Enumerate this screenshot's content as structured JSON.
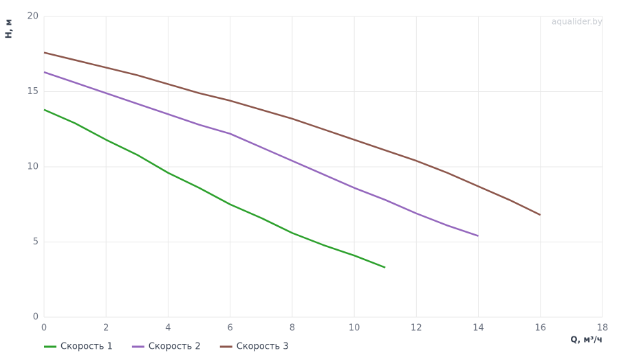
{
  "chart_data": {
    "type": "line",
    "x_label": "Q, м³/ч",
    "y_label": "H, м",
    "watermark": "aqualider.by",
    "x": [
      0,
      1,
      2,
      3,
      4,
      5,
      6,
      7,
      8,
      9,
      10,
      11,
      12,
      13,
      14,
      15,
      16
    ],
    "series": [
      {
        "name": "Скорость 1",
        "color": "#2ca02c",
        "values": [
          13.8,
          12.9,
          11.8,
          10.8,
          9.6,
          8.6,
          7.5,
          6.6,
          5.6,
          4.8,
          4.1,
          3.3,
          null,
          null,
          null,
          null,
          null
        ]
      },
      {
        "name": "Скорость 2",
        "color": "#9467bd",
        "values": [
          16.3,
          15.6,
          14.9,
          14.2,
          13.5,
          12.8,
          12.2,
          11.3,
          10.4,
          9.5,
          8.6,
          7.8,
          6.9,
          6.1,
          5.4,
          null,
          null
        ]
      },
      {
        "name": "Скорость 3",
        "color": "#8c564b",
        "values": [
          17.6,
          17.1,
          16.6,
          16.1,
          15.5,
          14.9,
          14.4,
          13.8,
          13.2,
          12.5,
          11.8,
          11.1,
          10.4,
          9.6,
          8.7,
          7.8,
          6.8
        ]
      }
    ],
    "xlim": [
      0,
      18
    ],
    "xticks": [
      0,
      2,
      4,
      6,
      8,
      10,
      12,
      14,
      16,
      18
    ],
    "ylim": [
      0,
      20
    ],
    "yticks": [
      0,
      5,
      10,
      15,
      20
    ],
    "grid": true,
    "legend": "bottom-left"
  }
}
